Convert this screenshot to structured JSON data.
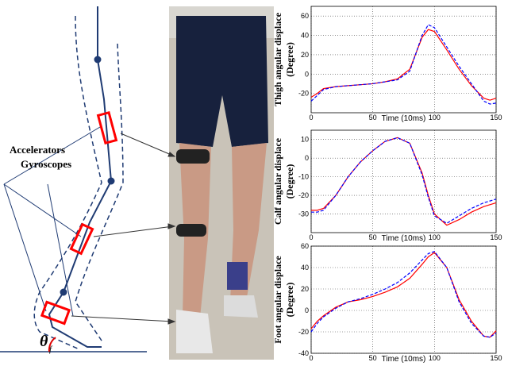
{
  "diagram": {
    "labels": [
      "Accelerators",
      "Gyroscopes"
    ],
    "angle": "θ",
    "angle_sub": "f"
  },
  "chart_data": [
    {
      "type": "line",
      "ylabel": [
        "Thigh angular displace",
        "(Degree)"
      ],
      "xlabel": "Time  (10ms)",
      "x": [
        0,
        5,
        10,
        20,
        30,
        40,
        50,
        60,
        70,
        80,
        90,
        95,
        100,
        110,
        120,
        130,
        140,
        145,
        150
      ],
      "series": [
        {
          "color": "#ff0000",
          "dash": false,
          "values": [
            -24,
            -20,
            -15,
            -13,
            -12,
            -11,
            -10,
            -8,
            -5,
            5,
            38,
            46,
            44,
            25,
            5,
            -12,
            -25,
            -27,
            -25
          ]
        },
        {
          "color": "#0000ff",
          "dash": true,
          "values": [
            -28,
            -22,
            -16,
            -13,
            -12,
            -11,
            -10,
            -8,
            -6,
            3,
            40,
            51,
            48,
            28,
            8,
            -10,
            -28,
            -31,
            -30
          ]
        }
      ],
      "xlim": [
        0,
        150
      ],
      "xticks": [
        0,
        50,
        100,
        150
      ],
      "ylim": [
        -40,
        70
      ],
      "yticks": [
        -20,
        0,
        20,
        40,
        60
      ],
      "grid": true
    },
    {
      "type": "line",
      "ylabel": [
        "Calf angular displace",
        "(Degree)"
      ],
      "xlabel": "Time  (10ms)",
      "x": [
        0,
        5,
        10,
        20,
        30,
        40,
        50,
        60,
        70,
        80,
        90,
        95,
        100,
        110,
        120,
        130,
        140,
        145,
        150
      ],
      "series": [
        {
          "color": "#ff0000",
          "dash": false,
          "values": [
            -28,
            -28,
            -27,
            -20,
            -10,
            -2,
            4,
            9,
            11,
            8,
            -8,
            -20,
            -30,
            -36,
            -33,
            -29,
            -26,
            -25,
            -24
          ]
        },
        {
          "color": "#0000ff",
          "dash": true,
          "values": [
            -29,
            -29,
            -28,
            -20,
            -10,
            -2,
            4,
            9,
            11,
            8,
            -9,
            -21,
            -31,
            -35,
            -31,
            -27,
            -24,
            -23,
            -22
          ]
        }
      ],
      "xlim": [
        0,
        150
      ],
      "xticks": [
        0,
        50,
        100,
        150
      ],
      "ylim": [
        -40,
        15
      ],
      "yticks": [
        -30,
        -20,
        -10,
        0,
        10
      ],
      "grid": true
    },
    {
      "type": "line",
      "ylabel": [
        "Foot angular displace",
        "(Degree)"
      ],
      "xlabel": "Time  (10ms)",
      "x": [
        0,
        5,
        10,
        20,
        30,
        40,
        50,
        60,
        70,
        80,
        90,
        95,
        100,
        110,
        120,
        130,
        140,
        145,
        150
      ],
      "series": [
        {
          "color": "#ff0000",
          "dash": false,
          "values": [
            -17,
            -10,
            -5,
            3,
            8,
            10,
            13,
            17,
            22,
            30,
            43,
            50,
            54,
            40,
            10,
            -10,
            -24,
            -25,
            -19
          ]
        },
        {
          "color": "#0000ff",
          "dash": true,
          "values": [
            -20,
            -12,
            -6,
            2,
            8,
            11,
            15,
            20,
            26,
            35,
            47,
            53,
            55,
            40,
            8,
            -12,
            -24,
            -25,
            -21
          ]
        }
      ],
      "xlim": [
        0,
        150
      ],
      "xticks": [
        0,
        50,
        100,
        150
      ],
      "ylim": [
        -40,
        60
      ],
      "yticks": [
        -40,
        -20,
        0,
        20,
        40,
        60
      ],
      "grid": true
    }
  ]
}
